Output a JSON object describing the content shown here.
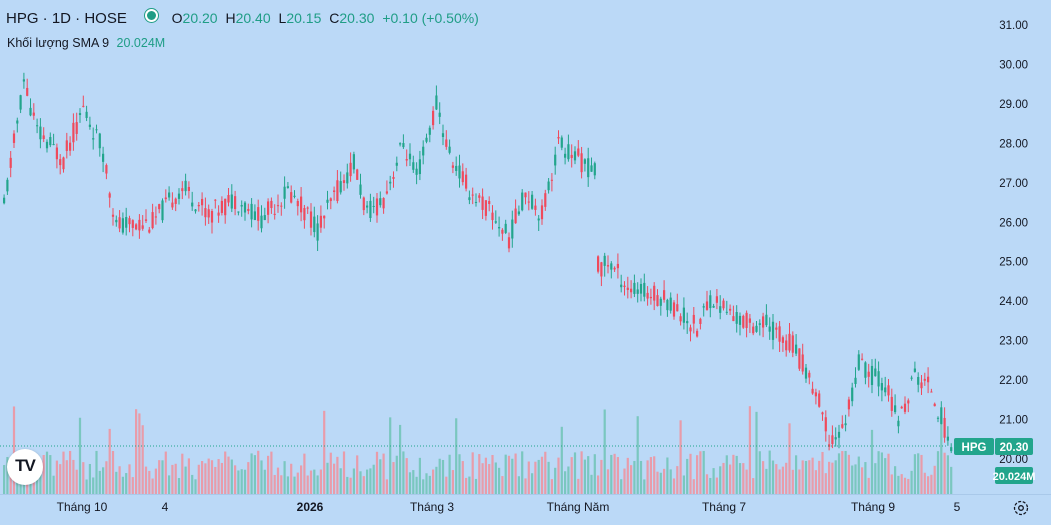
{
  "header": {
    "symbol": "HPG · 1D · HOSE",
    "status_color": "#1f9d86",
    "ohlc": [
      {
        "key": "O",
        "value": "20.20"
      },
      {
        "key": "H",
        "value": "20.40"
      },
      {
        "key": "L",
        "value": "20.15"
      },
      {
        "key": "C",
        "value": "20.30"
      }
    ],
    "change": "+0.10 (+0.50%)"
  },
  "volume_legend": {
    "label": "Khối lượng",
    "indicator": "SMA 9",
    "value": "20.024M"
  },
  "price_tag": {
    "symbol": "HPG",
    "value": "20.30",
    "color": "#22a58c"
  },
  "volume_tag": {
    "value": "20.024M",
    "color": "#22a58c"
  },
  "logo": {
    "text": "TV"
  },
  "time_axis_labels": [
    "Tháng 10",
    "4",
    "2026",
    "Tháng 3",
    "Tháng Năm",
    "Tháng 7",
    "Tháng 9",
    "5"
  ],
  "price_axis_labels": [
    "31.00",
    "30.00",
    "29.00",
    "28.00",
    "27.00",
    "26.00",
    "25.00",
    "24.00",
    "23.00",
    "22.00",
    "21.00",
    "20.00"
  ],
  "colors": {
    "up": "#22a58c",
    "down": "#ef4a5c",
    "background": "#bbd9f7"
  },
  "chart_data": {
    "type": "candlestick",
    "ylim": [
      19.7,
      31.3
    ],
    "ylabel": "",
    "last_close": 20.3,
    "segments": [
      {
        "n": 95,
        "path": [
          [
            0,
            26.4
          ],
          [
            6,
            29.6
          ],
          [
            10,
            28.3
          ],
          [
            18,
            27.6
          ],
          [
            24,
            28.9
          ],
          [
            30,
            27.8
          ],
          [
            34,
            25.9
          ],
          [
            45,
            26.0
          ],
          [
            54,
            26.9
          ],
          [
            62,
            26.2
          ],
          [
            70,
            26.6
          ],
          [
            78,
            26.1
          ],
          [
            86,
            26.8
          ],
          [
            95,
            25.9
          ]
        ]
      },
      {
        "n": 85,
        "path": [
          [
            0,
            25.8
          ],
          [
            6,
            26.8
          ],
          [
            11,
            27.5
          ],
          [
            15,
            26.2
          ],
          [
            20,
            26.6
          ],
          [
            26,
            28.0
          ],
          [
            30,
            27.1
          ],
          [
            36,
            29.0
          ],
          [
            40,
            27.7
          ],
          [
            46,
            26.8
          ],
          [
            52,
            26.3
          ],
          [
            58,
            25.6
          ],
          [
            63,
            26.8
          ],
          [
            68,
            26.2
          ],
          [
            73,
            28.0
          ],
          [
            79,
            27.6
          ],
          [
            85,
            27.2
          ]
        ]
      },
      {
        "n": 3,
        "path": [
          [
            0,
            24.9
          ],
          [
            3,
            24.9
          ]
        ]
      },
      {
        "n": 105,
        "path": [
          [
            0,
            25.0
          ],
          [
            7,
            24.3
          ],
          [
            17,
            24.1
          ],
          [
            27,
            23.3
          ],
          [
            31,
            24.1
          ],
          [
            40,
            23.5
          ],
          [
            48,
            23.4
          ],
          [
            56,
            22.9
          ],
          [
            63,
            21.7
          ],
          [
            67,
            20.5
          ],
          [
            71,
            20.7
          ],
          [
            76,
            22.4
          ],
          [
            84,
            21.9
          ],
          [
            88,
            20.9
          ],
          [
            93,
            22.1
          ],
          [
            98,
            21.8
          ],
          [
            102,
            20.8
          ],
          [
            105,
            20.3
          ]
        ]
      }
    ],
    "gaps_after_bars": {
      "95": 20,
      "181": 35
    },
    "volume_mean_millions": 28,
    "sma9_last_millions": 20.024
  }
}
